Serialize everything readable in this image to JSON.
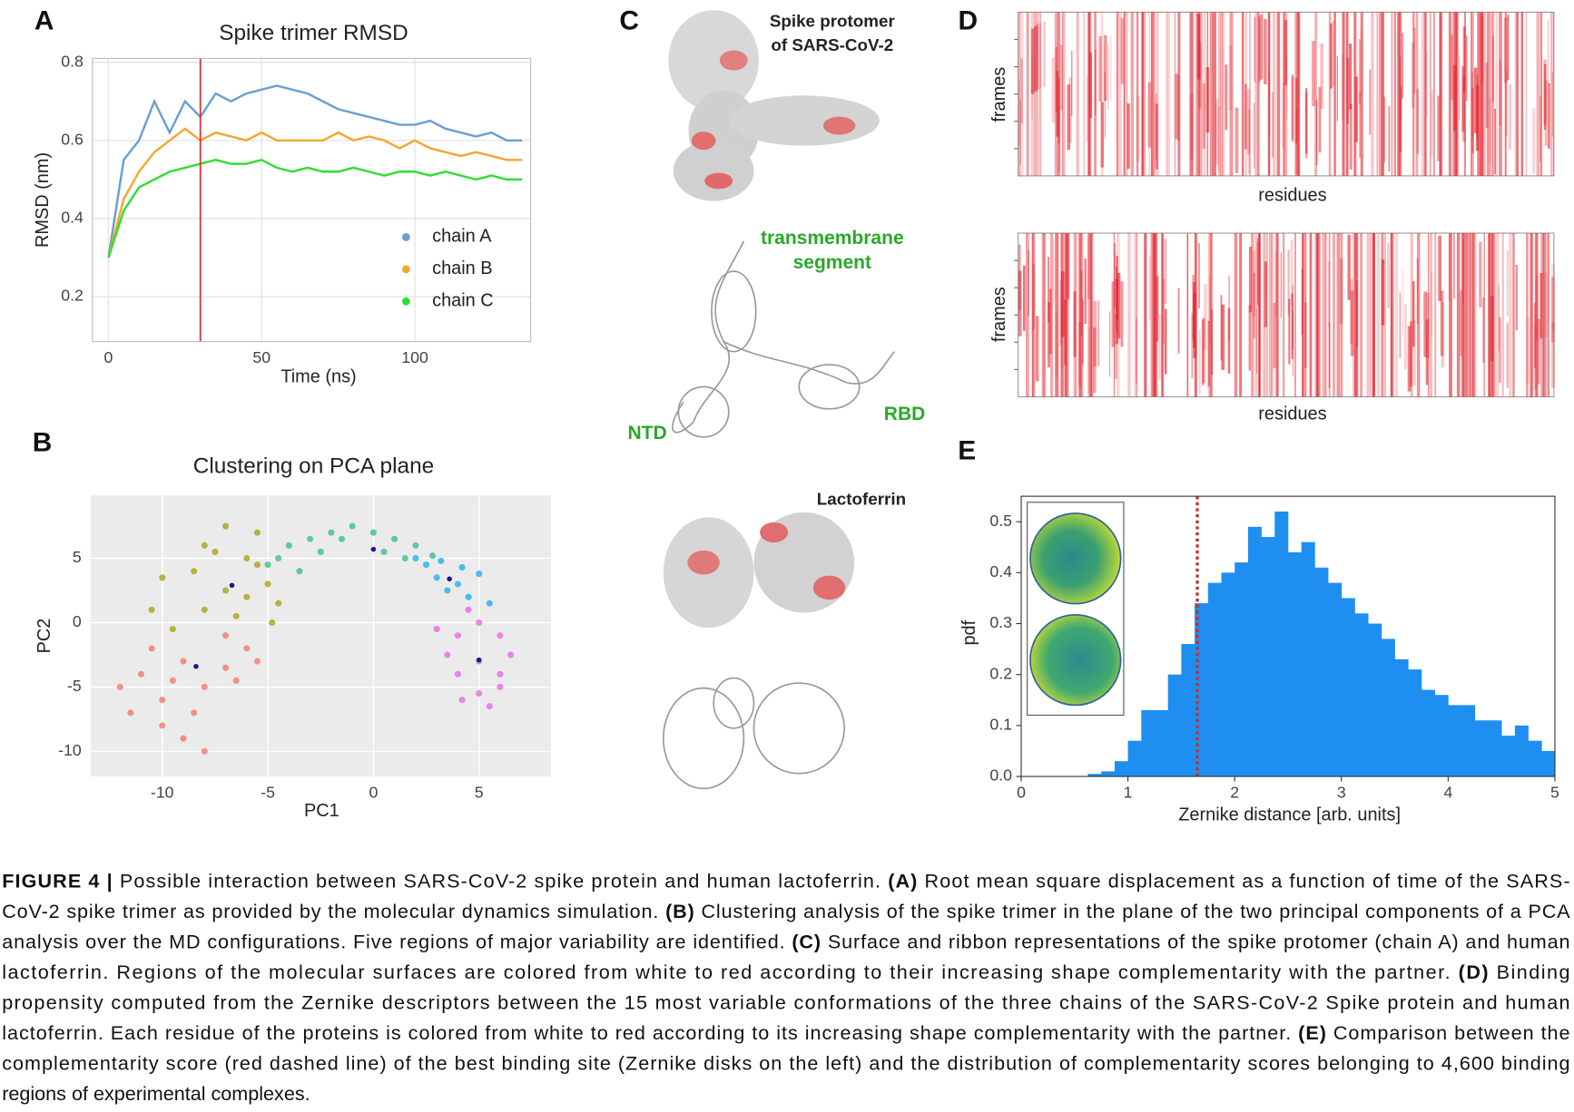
{
  "panels": [
    "A",
    "B",
    "C",
    "D",
    "E"
  ],
  "chart_data": [
    {
      "type": "line",
      "title": "Spike trimer RMSD",
      "xlabel": "Time (ns)",
      "ylabel": "RMSD (nm)",
      "x": [
        0,
        5,
        10,
        15,
        20,
        25,
        30,
        35,
        40,
        45,
        50,
        55,
        60,
        65,
        70,
        75,
        80,
        85,
        90,
        95,
        100,
        105,
        110,
        115,
        120,
        125,
        130,
        135
      ],
      "series": [
        {
          "name": "chain A",
          "color": "#6a9fd0",
          "values": [
            0.3,
            0.55,
            0.6,
            0.7,
            0.62,
            0.7,
            0.66,
            0.72,
            0.7,
            0.72,
            0.73,
            0.74,
            0.73,
            0.72,
            0.7,
            0.68,
            0.67,
            0.66,
            0.65,
            0.64,
            0.64,
            0.65,
            0.63,
            0.62,
            0.61,
            0.62,
            0.6,
            0.6
          ]
        },
        {
          "name": "chain B",
          "color": "#f0a830",
          "values": [
            0.3,
            0.45,
            0.52,
            0.57,
            0.6,
            0.63,
            0.6,
            0.62,
            0.61,
            0.6,
            0.62,
            0.6,
            0.6,
            0.6,
            0.6,
            0.62,
            0.6,
            0.61,
            0.6,
            0.58,
            0.6,
            0.58,
            0.57,
            0.56,
            0.57,
            0.56,
            0.55,
            0.55
          ]
        },
        {
          "name": "chain C",
          "color": "#33dd33",
          "values": [
            0.3,
            0.42,
            0.48,
            0.5,
            0.52,
            0.53,
            0.54,
            0.55,
            0.54,
            0.54,
            0.55,
            0.53,
            0.52,
            0.53,
            0.52,
            0.52,
            0.53,
            0.52,
            0.51,
            0.52,
            0.52,
            0.51,
            0.52,
            0.51,
            0.5,
            0.51,
            0.5,
            0.5
          ]
        }
      ],
      "vline": 30,
      "vline_color": "#e03030",
      "xlim": [
        -5.2,
        137.8
      ],
      "xticks": [
        0,
        50,
        100
      ],
      "ylim": [
        0.085,
        0.81
      ],
      "yticks": [
        0.2,
        0.4,
        0.6,
        0.8
      ],
      "grid": true,
      "legend": "right"
    },
    {
      "type": "scatter",
      "title": "Clustering on PCA plane",
      "xlabel": "PC1",
      "ylabel": "PC2",
      "series": [
        {
          "color": "#a8a21a",
          "x": [
            -8,
            -7,
            -5.5,
            -6,
            -8.5,
            -7,
            -5,
            -4.5,
            -6.5,
            -8,
            -10,
            -10.5,
            -9.5,
            -5.5,
            -7.5,
            -6,
            -4.8
          ],
          "y": [
            6,
            7.5,
            7,
            5,
            4,
            2.5,
            3,
            1.5,
            0.5,
            1,
            3.5,
            1,
            -0.5,
            4.5,
            5.5,
            2,
            0
          ]
        },
        {
          "color": "#f07a70",
          "x": [
            -11,
            -10,
            -9,
            -8,
            -7,
            -6,
            -7,
            -11.5,
            -10,
            -9,
            -8,
            -12,
            -10.5,
            -6.5,
            -5.5,
            -9.5,
            -8.5
          ],
          "y": [
            -4,
            -6,
            -3,
            -5,
            -1,
            -2,
            -3.5,
            -7,
            -8,
            -9,
            -10,
            -5,
            -2,
            -4.5,
            -3,
            -4.5,
            -7
          ]
        },
        {
          "color": "#3cc08a",
          "x": [
            -5,
            -4,
            -3,
            -2,
            -1,
            0,
            1,
            2,
            -4.5,
            -2.5,
            0.5,
            1.5,
            -1.5,
            -3.5,
            2.8
          ],
          "y": [
            4.5,
            6,
            6.5,
            7,
            7.5,
            7,
            6.5,
            6,
            5,
            5.5,
            5.5,
            5,
            6.5,
            4,
            5.2
          ]
        },
        {
          "color": "#20b0f0",
          "x": [
            2.5,
            3,
            4,
            4.5,
            5,
            3.5,
            2,
            5.5,
            4.2,
            3.2
          ],
          "y": [
            4.5,
            3.5,
            3,
            2,
            3.8,
            2.5,
            5,
            1.5,
            4.3,
            4.8
          ]
        },
        {
          "color": "#e66ae6",
          "x": [
            4,
            5,
            6,
            5,
            4,
            6,
            5,
            3.5,
            6.5,
            4.5,
            5.5,
            3,
            6,
            4.2
          ],
          "y": [
            -1,
            0,
            -1,
            -3,
            -4,
            -4,
            -5.5,
            -2.5,
            -2.5,
            1,
            -6.5,
            -0.5,
            -5,
            -6
          ]
        },
        {
          "color": "#1a1a8c",
          "x": [
            -6.7,
            0,
            3.6,
            5,
            -8.4
          ],
          "y": [
            2.9,
            5.7,
            3.4,
            -2.9,
            -3.4
          ]
        }
      ],
      "xlim": [
        -13.4,
        8.4
      ],
      "xticks": [
        -10,
        -5,
        0,
        5
      ],
      "ylim": [
        -11.95,
        9.9
      ],
      "yticks": [
        -10,
        -5,
        0,
        5
      ],
      "grid": true
    },
    {
      "type": "heatmap",
      "xlabel": "residues",
      "ylabel": "frames",
      "color": "#e0202a"
    },
    {
      "type": "heatmap",
      "xlabel": "residues",
      "ylabel": "frames",
      "color": "#e0202a"
    },
    {
      "type": "histogram",
      "xlabel": "Zernike distance [arb. units]",
      "ylabel": "pdf",
      "color": "#1f8ef1",
      "bins": [
        0.625,
        0.75,
        0.875,
        1,
        1.125,
        1.25,
        1.375,
        1.5,
        1.625,
        1.75,
        1.875,
        2,
        2.125,
        2.25,
        2.375,
        2.5,
        2.625,
        2.75,
        2.875,
        3,
        3.125,
        3.25,
        3.375,
        3.5,
        3.625,
        3.75,
        3.875,
        4,
        4.125,
        4.25,
        4.375,
        4.5,
        4.625,
        4.75,
        4.875,
        5
      ],
      "values": [
        0.005,
        0.01,
        0.03,
        0.07,
        0.13,
        0.13,
        0.2,
        0.26,
        0.34,
        0.38,
        0.4,
        0.42,
        0.49,
        0.47,
        0.52,
        0.44,
        0.46,
        0.41,
        0.38,
        0.35,
        0.32,
        0.3,
        0.27,
        0.23,
        0.21,
        0.17,
        0.16,
        0.14,
        0.14,
        0.11,
        0.11,
        0.08,
        0.1,
        0.07,
        0.05
      ],
      "vline": 1.65,
      "vline_color": "#c0302a",
      "xlim": [
        0,
        5
      ],
      "xticks": [
        0,
        1,
        2,
        3,
        4,
        5
      ],
      "ylim": [
        0,
        0.55
      ],
      "yticks": [
        {
          "value": 0,
          "label": "0.0"
        },
        0.1,
        0.2,
        0.3,
        0.4,
        0.5
      ]
    }
  ],
  "panel_c": {
    "spike_label": [
      "Spike protomer",
      "of SARS-CoV-2"
    ],
    "tm_label": [
      "transmembrane",
      "segment"
    ],
    "ntd": "NTD",
    "rbd": "RBD",
    "lactoferrin": "Lactoferrin"
  },
  "caption": {
    "lines": [
      [
        {
          "text": "FIGURE 4 |",
          "bold": true
        },
        {
          "text": " Possible interaction between SARS-CoV-2 spike protein and human lactoferrin. ",
          "bold": false
        },
        {
          "text": "(A)",
          "bold": true
        },
        {
          "text": " Root mean square displacement as a function of time of the SARS-",
          "bold": false
        }
      ],
      [
        {
          "text": "CoV-2 spike trimer as provided by the molecular dynamics simulation. ",
          "bold": false
        },
        {
          "text": "(B)",
          "bold": true
        },
        {
          "text": " Clustering analysis of the spike trimer in the plane of the two principal components of a PCA",
          "bold": false
        }
      ],
      [
        {
          "text": "analysis over the MD configurations. Five regions of major variability are identified. ",
          "bold": false
        },
        {
          "text": "(C)",
          "bold": true
        },
        {
          "text": " Surface and ribbon representations of the spike protomer (chain A) and human",
          "bold": false
        }
      ],
      [
        {
          "text": "lactoferrin. Regions of the molecular surfaces are colored from white to red according to their increasing shape complementarity with the partner. ",
          "bold": false
        },
        {
          "text": "(D)",
          "bold": true
        },
        {
          "text": " Binding",
          "bold": false
        }
      ],
      [
        {
          "text": "propensity computed from the Zernike descriptors between the 15 most variable conformations of the three chains of the SARS-CoV-2 Spike protein and human",
          "bold": false
        }
      ],
      [
        {
          "text": "lactoferrin. Each residue of the proteins is colored from white to red according to its increasing shape complementarity with the partner. ",
          "bold": false
        },
        {
          "text": "(E)",
          "bold": true
        },
        {
          "text": " Comparison between the",
          "bold": false
        }
      ],
      [
        {
          "text": "complementarity score (red dashed line) of the best binding site (Zernike disks on the left) and the distribution of complementarity scores belonging to 4,600 binding",
          "bold": false
        }
      ],
      [
        {
          "text": "regions of experimental complexes.",
          "bold": false
        }
      ]
    ]
  }
}
